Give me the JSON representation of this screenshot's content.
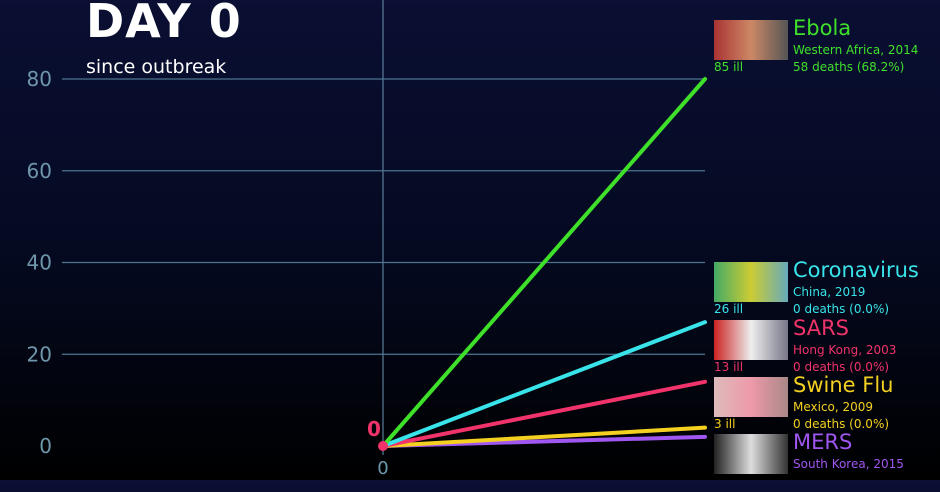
{
  "header": {
    "title": "DAY 0",
    "subtitle": "since outbreak"
  },
  "chart_data": {
    "type": "line",
    "x": [
      0,
      1
    ],
    "xticks": [
      "0"
    ],
    "ylim": [
      0,
      90
    ],
    "yticks": [
      0,
      20,
      40,
      60,
      80
    ],
    "grid": true,
    "current_value_marker": "0",
    "series": [
      {
        "name": "Ebola",
        "color": "#3fe02a",
        "values": [
          0,
          80
        ],
        "place": "Western Africa, 2014",
        "ill": "85 ill",
        "deaths": "58 deaths (68.2%)",
        "image": "ebola-photo"
      },
      {
        "name": "Coronavirus",
        "color": "#38e4ea",
        "values": [
          0,
          27
        ],
        "place": "China, 2019",
        "ill": "26 ill",
        "deaths": "0 deaths (0.0%)",
        "image": "coronavirus-photo"
      },
      {
        "name": "SARS",
        "color": "#f0336a",
        "values": [
          0,
          14
        ],
        "place": "Hong Kong, 2003",
        "ill": "13 ill",
        "deaths": "0 deaths (0.0%)",
        "image": "sars-photo"
      },
      {
        "name": "Swine Flu",
        "color": "#f4d020",
        "values": [
          0,
          4
        ],
        "place": "Mexico, 2009",
        "ill": "3 ill",
        "deaths": "0 deaths (0.0%)",
        "image": "swine-flu-photo"
      },
      {
        "name": "MERS",
        "color": "#a056f0",
        "values": [
          0,
          2
        ],
        "place": "South Korea, 2015",
        "image": "mers-photo"
      }
    ]
  }
}
